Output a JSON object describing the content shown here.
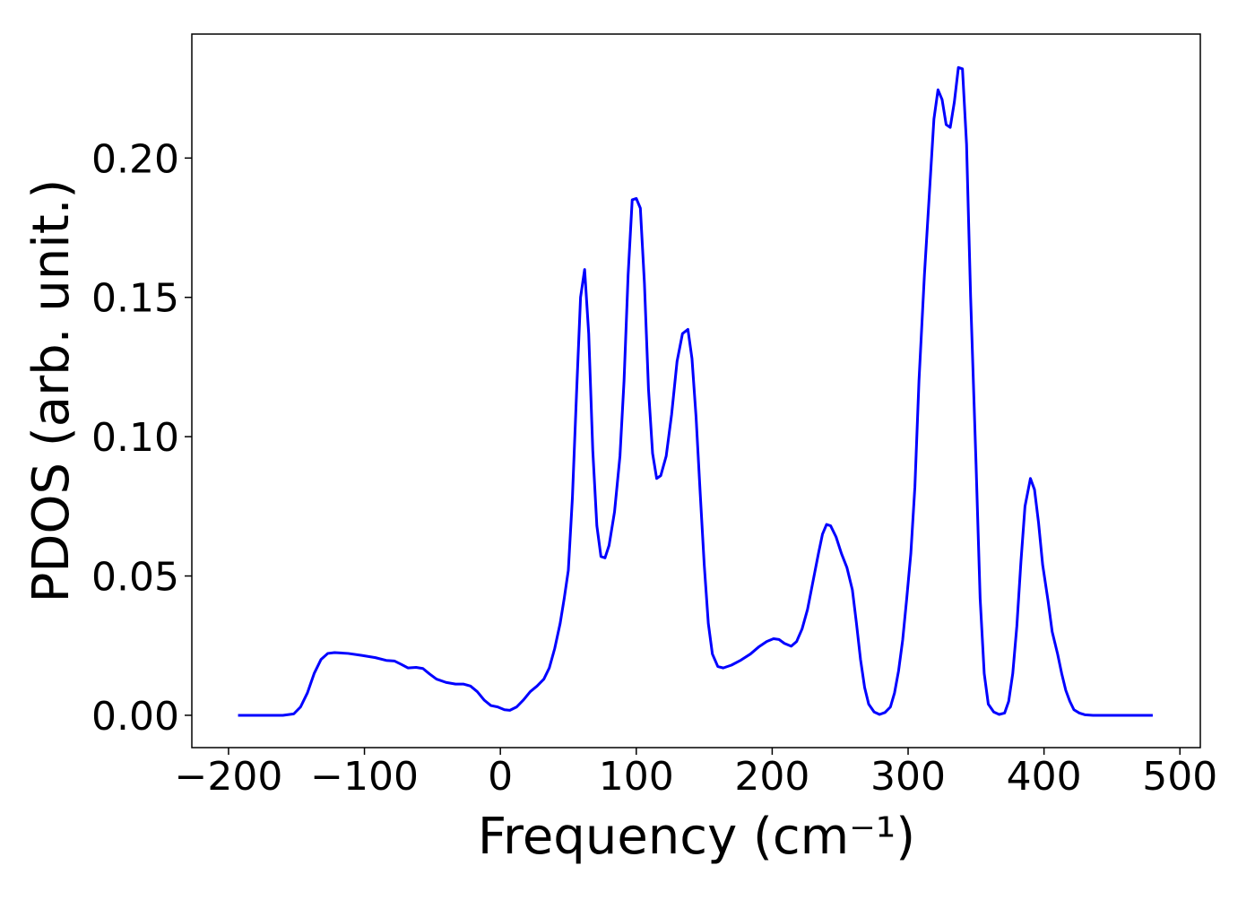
{
  "chart_data": {
    "type": "line",
    "xlabel": "Frequency (cm⁻¹)",
    "ylabel": "PDOS (arb. unit.)",
    "color": "#0000ff",
    "x": [
      -193,
      -160,
      -152,
      -147,
      -142,
      -137,
      -132,
      -127,
      -122,
      -112,
      -102,
      -92,
      -84,
      -78,
      -73,
      -68,
      -62,
      -57,
      -52,
      -47,
      -40,
      -33,
      -27,
      -22,
      -17,
      -12,
      -7,
      -2,
      3,
      7,
      12,
      17,
      22,
      27,
      32,
      36,
      40,
      44,
      47,
      50,
      53,
      56,
      59,
      62,
      65,
      68,
      71,
      74,
      77,
      80,
      84,
      88,
      91,
      94,
      97,
      100,
      103,
      106,
      109,
      112,
      115,
      118,
      122,
      126,
      130,
      134,
      138,
      141,
      144,
      147,
      150,
      153,
      156,
      160,
      164,
      170,
      177,
      184,
      190,
      196,
      201,
      205,
      209,
      214,
      218,
      222,
      226,
      230,
      234,
      237,
      240,
      243,
      247,
      251,
      255,
      259,
      262,
      265,
      268,
      271,
      275,
      279,
      283,
      287,
      290,
      293,
      296,
      299,
      302,
      305,
      308,
      312,
      316,
      319,
      322,
      325,
      328,
      331,
      334,
      337,
      340,
      343,
      346,
      350,
      353,
      356,
      359,
      363,
      367,
      371,
      374,
      377,
      380,
      383,
      386,
      390,
      393,
      396,
      399,
      403,
      406,
      410,
      413,
      416,
      419,
      422,
      426,
      430,
      436,
      480
    ],
    "values": [
      0,
      0,
      0.0005,
      0.003,
      0.008,
      0.015,
      0.02,
      0.0222,
      0.0225,
      0.0222,
      0.0215,
      0.0207,
      0.0197,
      0.0195,
      0.0183,
      0.017,
      0.0172,
      0.0168,
      0.0148,
      0.013,
      0.0118,
      0.0112,
      0.0112,
      0.0105,
      0.0085,
      0.0055,
      0.0035,
      0.003,
      0.002,
      0.0018,
      0.003,
      0.0055,
      0.0085,
      0.0105,
      0.013,
      0.017,
      0.024,
      0.033,
      0.042,
      0.052,
      0.078,
      0.115,
      0.15,
      0.16,
      0.137,
      0.095,
      0.068,
      0.057,
      0.0565,
      0.061,
      0.073,
      0.093,
      0.12,
      0.158,
      0.185,
      0.1855,
      0.182,
      0.155,
      0.117,
      0.094,
      0.085,
      0.086,
      0.093,
      0.108,
      0.127,
      0.137,
      0.1385,
      0.128,
      0.107,
      0.08,
      0.054,
      0.033,
      0.022,
      0.0175,
      0.017,
      0.018,
      0.0198,
      0.022,
      0.0245,
      0.0265,
      0.0275,
      0.0272,
      0.0258,
      0.0248,
      0.0265,
      0.031,
      0.038,
      0.048,
      0.058,
      0.065,
      0.0685,
      0.068,
      0.064,
      0.058,
      0.053,
      0.045,
      0.033,
      0.02,
      0.01,
      0.004,
      0.0012,
      0.0003,
      0.001,
      0.003,
      0.008,
      0.016,
      0.027,
      0.042,
      0.058,
      0.082,
      0.12,
      0.158,
      0.19,
      0.214,
      0.2245,
      0.221,
      0.212,
      0.211,
      0.22,
      0.2325,
      0.232,
      0.205,
      0.15,
      0.09,
      0.042,
      0.015,
      0.004,
      0.0012,
      0.0003,
      0.0008,
      0.005,
      0.015,
      0.032,
      0.055,
      0.075,
      0.085,
      0.081,
      0.069,
      0.054,
      0.041,
      0.03,
      0.022,
      0.015,
      0.009,
      0.005,
      0.002,
      0.0008,
      0.0002,
      0,
      0
    ],
    "xlim": [
      -227,
      515
    ],
    "ylim": [
      -0.0116,
      0.2445
    ],
    "xticks": [
      {
        "value": -200,
        "label": "−200"
      },
      {
        "value": -100,
        "label": "−100"
      },
      0,
      100,
      200,
      300,
      400,
      500
    ],
    "yticks": [
      {
        "value": 0,
        "label": "0.00"
      },
      {
        "value": 0.05,
        "label": "0.05"
      },
      {
        "value": 0.1,
        "label": "0.10"
      },
      {
        "value": 0.15,
        "label": "0.15"
      },
      {
        "value": 0.2,
        "label": "0.20"
      }
    ],
    "grid": false
  }
}
